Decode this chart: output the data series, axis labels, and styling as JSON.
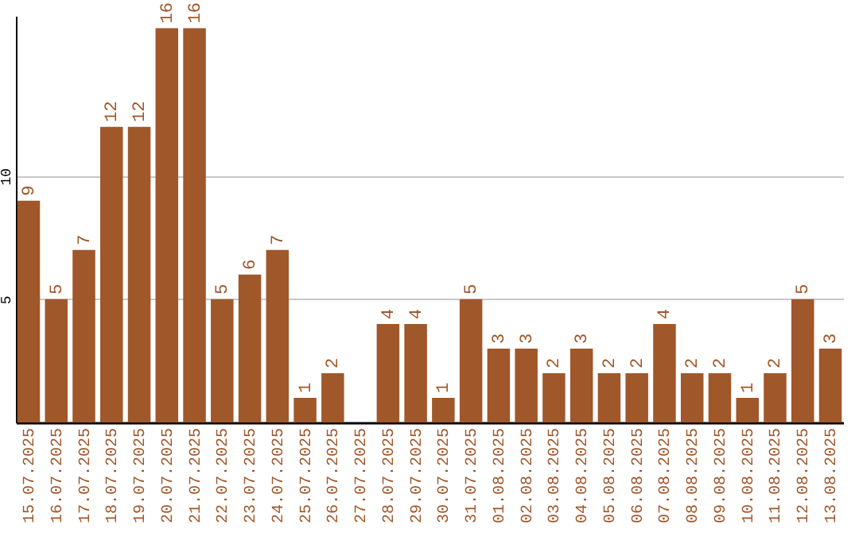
{
  "chart_data": {
    "type": "bar",
    "categories": [
      "15.07.2025",
      "16.07.2025",
      "17.07.2025",
      "18.07.2025",
      "19.07.2025",
      "20.07.2025",
      "21.07.2025",
      "22.07.2025",
      "23.07.2025",
      "24.07.2025",
      "25.07.2025",
      "26.07.2025",
      "27.07.2025",
      "28.07.2025",
      "29.07.2025",
      "30.07.2025",
      "31.07.2025",
      "01.08.2025",
      "02.08.2025",
      "03.08.2025",
      "04.08.2025",
      "05.08.2025",
      "06.08.2025",
      "07.08.2025",
      "08.08.2025",
      "09.08.2025",
      "10.08.2025",
      "11.08.2025",
      "12.08.2025",
      "13.08.2025"
    ],
    "values": [
      9,
      5,
      7,
      12,
      12,
      16,
      16,
      5,
      6,
      7,
      1,
      2,
      null,
      4,
      4,
      1,
      5,
      3,
      3,
      2,
      3,
      2,
      2,
      4,
      2,
      2,
      1,
      2,
      5,
      3
    ],
    "color": "#a0572a",
    "ylim": [
      0,
      16.5
    ],
    "yticks": [
      5,
      10
    ],
    "grid": "y",
    "data_labels": true
  }
}
